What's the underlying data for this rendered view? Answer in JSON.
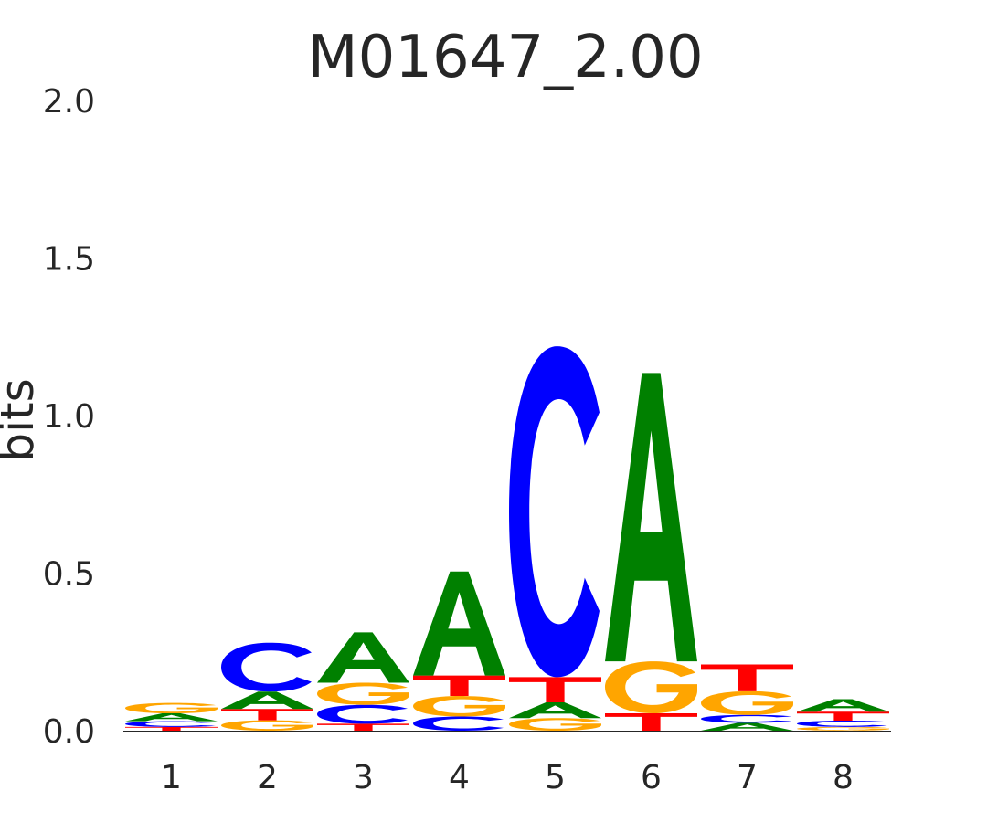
{
  "chart_data": {
    "type": "sequence-logo",
    "title": "M01647_2.00",
    "ylabel": "bits",
    "ylim": [
      0,
      2.0
    ],
    "yticks": [
      "0.0",
      "0.5",
      "1.0",
      "1.5",
      "2.0"
    ],
    "categories": [
      "1",
      "2",
      "3",
      "4",
      "5",
      "6",
      "7",
      "8"
    ],
    "colors": {
      "A": "#008000",
      "C": "#0000ff",
      "G": "#ffa500",
      "T": "#ff0000"
    },
    "positions": [
      {
        "position": "1",
        "letters": [
          {
            "base": "T",
            "bits": 0.012
          },
          {
            "base": "C",
            "bits": 0.018
          },
          {
            "base": "A",
            "bits": 0.025
          },
          {
            "base": "G",
            "bits": 0.033
          }
        ]
      },
      {
        "position": "2",
        "letters": [
          {
            "base": "G",
            "bits": 0.033
          },
          {
            "base": "T",
            "bits": 0.036
          },
          {
            "base": "A",
            "bits": 0.055
          },
          {
            "base": "C",
            "bits": 0.155
          }
        ]
      },
      {
        "position": "3",
        "letters": [
          {
            "base": "T",
            "bits": 0.022
          },
          {
            "base": "C",
            "bits": 0.06
          },
          {
            "base": "G",
            "bits": 0.07
          },
          {
            "base": "A",
            "bits": 0.16
          }
        ]
      },
      {
        "position": "4",
        "letters": [
          {
            "base": "C",
            "bits": 0.045
          },
          {
            "base": "G",
            "bits": 0.065
          },
          {
            "base": "T",
            "bits": 0.065
          },
          {
            "base": "A",
            "bits": 0.33
          }
        ]
      },
      {
        "position": "5",
        "letters": [
          {
            "base": "G",
            "bits": 0.04
          },
          {
            "base": "A",
            "bits": 0.05
          },
          {
            "base": "T",
            "bits": 0.08
          },
          {
            "base": "C",
            "bits": 1.05
          }
        ]
      },
      {
        "position": "6",
        "letters": [
          {
            "base": "T",
            "bits": 0.055
          },
          {
            "base": "G",
            "bits": 0.165
          },
          {
            "base": "A",
            "bits": 0.915
          }
        ]
      },
      {
        "position": "7",
        "letters": [
          {
            "base": "A",
            "bits": 0.025
          },
          {
            "base": "C",
            "bits": 0.025
          },
          {
            "base": "G",
            "bits": 0.075
          },
          {
            "base": "T",
            "bits": 0.085
          }
        ]
      },
      {
        "position": "8",
        "letters": [
          {
            "base": "G",
            "bits": 0.012
          },
          {
            "base": "C",
            "bits": 0.02
          },
          {
            "base": "T",
            "bits": 0.028
          },
          {
            "base": "A",
            "bits": 0.04
          }
        ]
      }
    ]
  }
}
